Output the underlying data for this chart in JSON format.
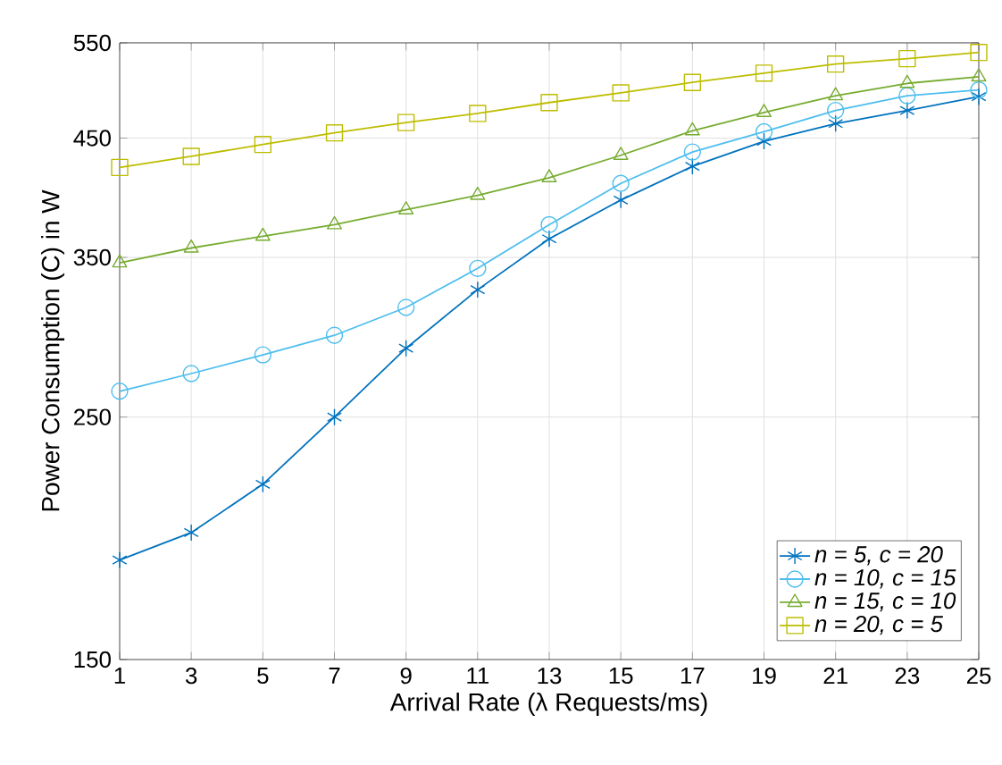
{
  "chart_data": {
    "type": "line",
    "xlabel": "Arrival Rate (λ Requests/ms)",
    "ylabel": "Power Consumption (C) in W",
    "x": [
      1,
      3,
      5,
      7,
      9,
      11,
      13,
      15,
      17,
      19,
      21,
      23,
      25
    ],
    "series": [
      {
        "name": "n = 5, c = 20",
        "color": "#0072bd",
        "marker": "cross",
        "values": [
          185,
          196,
          217,
          250,
          289,
          327,
          364,
          395,
          424,
          447,
          464,
          477,
          491
        ]
      },
      {
        "name": "n = 10, c = 15",
        "color": "#4dbeee",
        "marker": "circle",
        "values": [
          264,
          274,
          285,
          297,
          315,
          342,
          375,
          409,
          437,
          456,
          477,
          492,
          498
        ]
      },
      {
        "name": "n = 15, c = 10",
        "color": "#77ac30",
        "marker": "triangle",
        "values": [
          346,
          357,
          366,
          375,
          387,
          399,
          414,
          434,
          457,
          475,
          492,
          505,
          512
        ]
      },
      {
        "name": "n = 20, c = 5",
        "color": "#bdbd00",
        "marker": "square",
        "values": [
          423,
          433,
          444,
          455,
          465,
          474,
          485,
          495,
          506,
          516,
          526,
          532,
          539
        ]
      }
    ],
    "xlim": [
      1,
      25
    ],
    "xticks": [
      1,
      3,
      5,
      7,
      9,
      11,
      13,
      15,
      17,
      19,
      21,
      23,
      25
    ],
    "ylim": [
      150,
      550
    ],
    "yticks": [
      150,
      250,
      350,
      450,
      550
    ],
    "log": "y",
    "grid": true,
    "legend": "bottom right",
    "line_style": "solid"
  }
}
